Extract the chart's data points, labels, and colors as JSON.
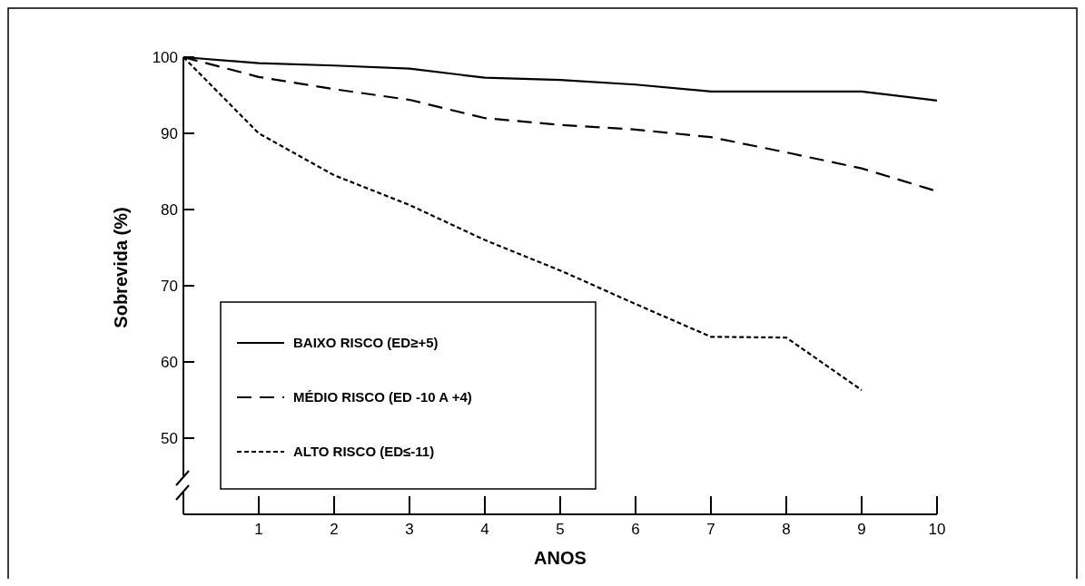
{
  "chart_data": {
    "type": "line",
    "xlabel": "ANOS",
    "ylabel": "Sobrevida (%)",
    "x": [
      0,
      1,
      2,
      3,
      4,
      5,
      6,
      7,
      8,
      9,
      10
    ],
    "xlim": [
      0,
      10
    ],
    "xticks": [
      1,
      2,
      3,
      4,
      5,
      6,
      7,
      8,
      9,
      10
    ],
    "ylim": [
      40,
      100
    ],
    "yticks": [
      50,
      60,
      70,
      80,
      90,
      100
    ],
    "grid": false,
    "legend": "bottom left",
    "marker": "none",
    "series": [
      {
        "name": "BAIXO RISCO (ED≥+5)",
        "color": "#000000",
        "line_style": "solid",
        "values": [
          100,
          99.2,
          98.9,
          98.5,
          97.3,
          97,
          96.4,
          95.5,
          95.5,
          95.5,
          94.3
        ]
      },
      {
        "name": "MÉDIO RISCO (ED -10 A +4)",
        "color": "#000000",
        "line_style": "dashed",
        "values": [
          100,
          97.4,
          95.8,
          94.4,
          92,
          91.1,
          90.5,
          89.5,
          87.5,
          85.4,
          82.4
        ]
      },
      {
        "name": "ALTO RISCO (ED≤-11)",
        "color": "#000000",
        "line_style": "dotted",
        "values": [
          100,
          90,
          84.5,
          80.6,
          76,
          72,
          67.6,
          63.3,
          63.2,
          56.3,
          null
        ]
      }
    ]
  }
}
